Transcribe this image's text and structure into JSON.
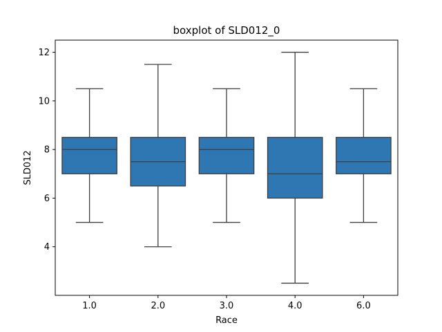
{
  "chart_data": {
    "type": "boxplot",
    "title": "boxplot of SLD012_0",
    "xlabel": "Race",
    "ylabel": "SLD012",
    "ylim": [
      2.0,
      12.5
    ],
    "yticks": [
      4,
      6,
      8,
      10,
      12
    ],
    "ytick_labels": [
      "4",
      "6",
      "8",
      "10",
      "12"
    ],
    "categories": [
      "1.0",
      "2.0",
      "3.0",
      "4.0",
      "6.0"
    ],
    "boxes": [
      {
        "category": "1.0",
        "whisker_low": 5.0,
        "q1": 7.0,
        "median": 8.0,
        "q3": 8.5,
        "whisker_high": 10.5
      },
      {
        "category": "2.0",
        "whisker_low": 4.0,
        "q1": 6.5,
        "median": 7.5,
        "q3": 8.5,
        "whisker_high": 11.5
      },
      {
        "category": "3.0",
        "whisker_low": 5.0,
        "q1": 7.0,
        "median": 8.0,
        "q3": 8.5,
        "whisker_high": 10.5
      },
      {
        "category": "4.0",
        "whisker_low": 2.5,
        "q1": 6.0,
        "median": 7.0,
        "q3": 8.5,
        "whisker_high": 12.0
      },
      {
        "category": "6.0",
        "whisker_low": 5.0,
        "q1": 7.0,
        "median": 7.5,
        "q3": 8.5,
        "whisker_high": 10.5
      }
    ],
    "box_color": "#2f77b3",
    "line_color": "#3d3d3d",
    "grid": false,
    "legend": "none"
  }
}
